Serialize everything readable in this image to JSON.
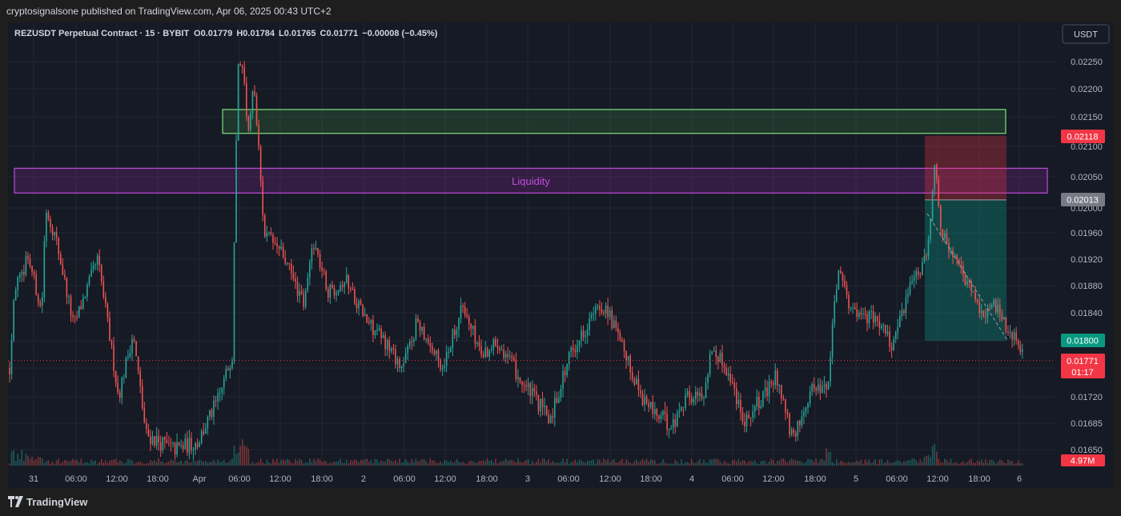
{
  "header": {
    "publisher_line": "cryptosignalsone published on TradingView.com, Apr 06, 2025 00:43 UTC+2"
  },
  "symbol_info": {
    "title": "REZUSDT Perpetual Contract · 15 · BYBIT",
    "open_label": "O",
    "open": "0.01779",
    "high_label": "H",
    "high": "0.01784",
    "low_label": "L",
    "low": "0.01765",
    "close_label": "C",
    "close": "0.01771",
    "change": "−0.00008 (−0.45%)"
  },
  "currency_button": "USDT",
  "annotations": {
    "liquidity_label": "Liquidity"
  },
  "price_badges": {
    "stop": "0.02118",
    "entry": "0.02013",
    "target": "0.01800",
    "last": "0.01771",
    "countdown": "01:17",
    "volume": "4.97M"
  },
  "colors": {
    "background": "#161a25",
    "up": "#26a69a",
    "down": "#ef5350",
    "green_zone": "#7ee37a",
    "liquidity_zone": "#c04cd9",
    "badge_red": "#f23645",
    "badge_gray": "#787b86",
    "badge_teal": "#089981"
  },
  "footer": {
    "brand": "TradingView"
  },
  "chart_data": {
    "type": "candlestick",
    "symbol": "REZUSDT",
    "interval": "15",
    "exchange": "BYBIT",
    "y_axis_ticks": [
      "0.02250",
      "0.02200",
      "0.02150",
      "0.02100",
      "0.02050",
      "0.02000",
      "0.01960",
      "0.01920",
      "0.01880",
      "0.01840",
      "0.01800",
      "0.01760",
      "0.01720",
      "0.01685",
      "0.01650"
    ],
    "x_axis_ticks": [
      "31",
      "06:00",
      "12:00",
      "18:00",
      "Apr",
      "06:00",
      "12:00",
      "18:00",
      "2",
      "06:00",
      "12:00",
      "18:00",
      "3",
      "06:00",
      "12:00",
      "18:00",
      "4",
      "06:00",
      "12:00",
      "18:00",
      "5",
      "06:00",
      "12:00",
      "18:00",
      "6"
    ],
    "x_range": [
      "Mar 31 00:00",
      "Apr 06 00:43"
    ],
    "y_range": [
      0.0163,
      0.0228
    ],
    "price_path": [
      [
        0,
        0.0176
      ],
      [
        6,
        0.0188
      ],
      [
        15,
        0.0189
      ],
      [
        22,
        0.0193
      ],
      [
        40,
        0.0184
      ],
      [
        45,
        0.02
      ],
      [
        58,
        0.0195
      ],
      [
        80,
        0.0182
      ],
      [
        110,
        0.0192
      ],
      [
        136,
        0.0172
      ],
      [
        154,
        0.0181
      ],
      [
        170,
        0.0167
      ],
      [
        205,
        0.0165
      ],
      [
        235,
        0.0166
      ],
      [
        262,
        0.0172
      ],
      [
        278,
        0.0178
      ],
      [
        285,
        0.0224
      ],
      [
        290,
        0.0226
      ],
      [
        298,
        0.0212
      ],
      [
        305,
        0.0221
      ],
      [
        318,
        0.0196
      ],
      [
        340,
        0.0193
      ],
      [
        368,
        0.0185
      ],
      [
        379,
        0.0195
      ],
      [
        398,
        0.0187
      ],
      [
        420,
        0.0189
      ],
      [
        445,
        0.0183
      ],
      [
        475,
        0.0179
      ],
      [
        490,
        0.0176
      ],
      [
        510,
        0.0183
      ],
      [
        540,
        0.0176
      ],
      [
        565,
        0.0185
      ],
      [
        590,
        0.0178
      ],
      [
        610,
        0.018
      ],
      [
        640,
        0.0174
      ],
      [
        675,
        0.0169
      ],
      [
        700,
        0.0178
      ],
      [
        730,
        0.0184
      ],
      [
        745,
        0.0185
      ],
      [
        768,
        0.0178
      ],
      [
        790,
        0.0172
      ],
      [
        805,
        0.017
      ],
      [
        828,
        0.0168
      ],
      [
        843,
        0.0172
      ],
      [
        866,
        0.0172
      ],
      [
        877,
        0.0179
      ],
      [
        895,
        0.0176
      ],
      [
        918,
        0.0169
      ],
      [
        942,
        0.0172
      ],
      [
        958,
        0.0175
      ],
      [
        978,
        0.0166
      ],
      [
        1000,
        0.0173
      ],
      [
        1022,
        0.0174
      ],
      [
        1035,
        0.0191
      ],
      [
        1047,
        0.0185
      ],
      [
        1062,
        0.0184
      ],
      [
        1085,
        0.0183
      ],
      [
        1102,
        0.0179
      ],
      [
        1125,
        0.0188
      ],
      [
        1145,
        0.0192
      ],
      [
        1156,
        0.0208
      ],
      [
        1163,
        0.0197
      ],
      [
        1175,
        0.0193
      ],
      [
        1215,
        0.0184
      ],
      [
        1232,
        0.0185
      ],
      [
        1265,
        0.0178
      ],
      [
        1278,
        0.01771
      ]
    ],
    "zones": [
      {
        "kind": "green_box",
        "price_top": 0.02163,
        "price_bottom": 0.02122
      },
      {
        "kind": "liquidity",
        "label": "Liquidity",
        "price_top": 0.02064,
        "price_bottom": 0.02024
      },
      {
        "kind": "short_position",
        "stop": 0.02118,
        "entry": 0.02013,
        "target": 0.018
      }
    ],
    "last_price": 0.01771,
    "volume_last": "4.97M"
  }
}
